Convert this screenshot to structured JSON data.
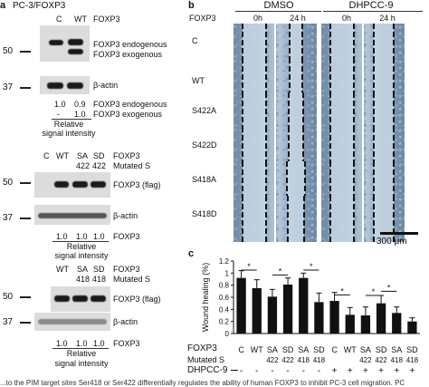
{
  "panel_a": {
    "letter": "a",
    "title": "PC-3/FOXP3",
    "blot1": {
      "lane_labels": [
        "C",
        "WT"
      ],
      "header_label": "FOXP3",
      "marker_50": "50",
      "marker_37": "37",
      "band_labels": [
        "FOXP3 endogenous",
        "FOXP3 exogenous"
      ],
      "actin_label": "β-actin",
      "quant_row1": [
        "1.0",
        "0.9"
      ],
      "quant_row2": [
        "-",
        "1.0"
      ],
      "quant_label1": "FOXP3 endogenous",
      "quant_label2": "FOXP3 exogenous",
      "relative_label": "Relative",
      "signal_label": "signal intensity"
    },
    "blot2": {
      "lane_labels": [
        "C",
        "WT",
        "SA",
        "SD"
      ],
      "sublabels": [
        "422",
        "422"
      ],
      "header_label": "FOXP3",
      "header_sub": "Mutated S",
      "marker_50": "50",
      "marker_37": "37",
      "band_label": "FOXP3 (flag)",
      "actin_label": "β-actin",
      "quant": [
        "1.0",
        "1.0",
        "1.0"
      ],
      "quant_label": "FOXP3",
      "relative_label": "Relative",
      "signal_label": "signal intensity"
    },
    "blot3": {
      "lane_labels": [
        "WT",
        "SA",
        "SD"
      ],
      "sublabels": [
        "418",
        "418"
      ],
      "header_label": "FOXP3",
      "header_sub": "Mutated S",
      "marker_50": "50",
      "marker_37": "37",
      "band_label": "FOXP3 (flag)",
      "actin_label": "β-actin",
      "quant": [
        "1.0",
        "1.0",
        "1.0"
      ],
      "quant_label": "FOXP3",
      "relative_label": "Relative",
      "signal_label": "signal intensity"
    }
  },
  "panel_b": {
    "letter": "b",
    "group1": "DMSO",
    "group2": "DHPCC-9",
    "row_header": "FOXP3",
    "times": [
      "0h",
      "24 h",
      "0h",
      "24 h"
    ],
    "rows": [
      "C",
      "WT",
      "S422A",
      "S422D",
      "S418A",
      "S418D"
    ],
    "scale_bar": "300 μm"
  },
  "panel_c": {
    "letter": "c",
    "foxp3_label": "FOXP3",
    "mutated_label": "Mutated S",
    "dhpcc_label": "DHPCC-9",
    "foxp3_row": [
      "C",
      "WT",
      "SA",
      "SD",
      "SA",
      "SD",
      "C",
      "WT",
      "SA",
      "SD",
      "SA",
      "SD"
    ],
    "mutated_row": [
      "",
      "",
      "422",
      "422",
      "418",
      "418",
      "",
      "",
      "422",
      "422",
      "418",
      "418"
    ],
    "dhpcc_row": [
      "-",
      "-",
      "-",
      "-",
      "-",
      "-",
      "+",
      "+",
      "+",
      "+",
      "+",
      "+"
    ],
    "significance": [
      "*",
      "*",
      "*",
      "*",
      "*",
      "*"
    ]
  },
  "chart_data": {
    "type": "bar",
    "ylabel": "Wound healing (%)",
    "ylim": [
      0,
      1.2
    ],
    "yticks": [
      "0",
      "0.2",
      "0.4",
      "0.6",
      "0.8",
      "1",
      "1.2"
    ],
    "categories": [
      "C",
      "WT",
      "SA 422",
      "SD 422",
      "SA 418",
      "SD 418",
      "C",
      "WT",
      "SA 422",
      "SD 422",
      "SA 418",
      "SD 418"
    ],
    "values": [
      0.92,
      0.75,
      0.61,
      0.81,
      0.92,
      0.52,
      0.54,
      0.31,
      0.3,
      0.5,
      0.34,
      0.2
    ],
    "errors": [
      0.12,
      0.14,
      0.12,
      0.11,
      0.08,
      0.15,
      0.14,
      0.12,
      0.14,
      0.13,
      0.1,
      0.06
    ],
    "bar_color": "#111111",
    "grid": false
  },
  "caption": "...to the PIM target sites Ser418 or Ser422 differentially regulates the ability of human FOXP3 to inhibit PC-3 cell migration. PC"
}
